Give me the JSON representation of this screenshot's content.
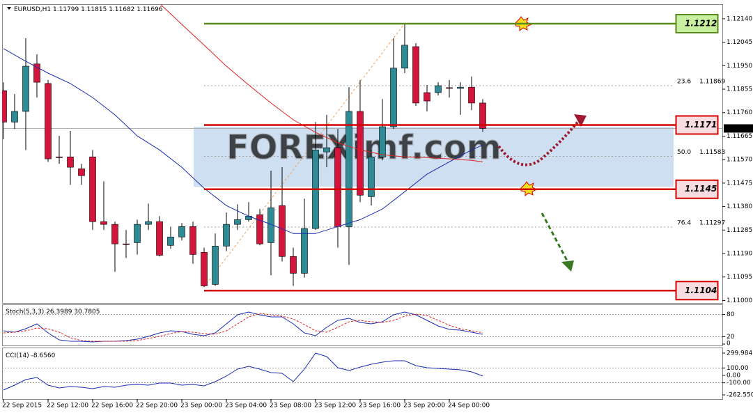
{
  "chart_data": [
    {
      "type": "candlestick",
      "title": "EURUSD,H1",
      "watermark": "FOREXimf.com",
      "categories": [
        "22 Sep 2015",
        null,
        null,
        null,
        "22 Sep 12:00",
        null,
        null,
        null,
        "22 Sep 16:00",
        null,
        null,
        null,
        "22 Sep 20:00",
        null,
        null,
        null,
        "23 Sep 00:00",
        null,
        null,
        null,
        "23 Sep 04:00",
        null,
        null,
        null,
        "23 Sep 08:00",
        null,
        null,
        null,
        "23 Sep 12:00",
        null,
        null,
        null,
        "23 Sep 16:00",
        null,
        null,
        null,
        "23 Sep 20:00",
        null,
        null,
        null,
        "24 Sep 00:00",
        null,
        null,
        null
      ],
      "open": [
        1.11849,
        1.11722,
        1.11765,
        1.11957,
        1.11878,
        1.11581,
        1.11581,
        1.11533,
        1.11581,
        1.11319,
        1.11308,
        1.11229,
        1.11234,
        1.11308,
        1.11319,
        1.11223,
        1.11257,
        1.11299,
        1.11195,
        1.11065,
        1.1122,
        1.11308,
        1.11327,
        1.11347,
        1.11234,
        1.11384,
        1.11178,
        1.1111,
        1.11291,
        1.11601,
        1.11618,
        1.11299,
        1.11765,
        1.1142,
        1.11581,
        1.11703,
        1.1194,
        1.12027,
        1.11841,
        1.11841,
        1.11861,
        1.11858,
        1.11863,
        1.11799
      ],
      "high": [
        1.11883,
        1.11835,
        1.12061,
        1.11996,
        1.11892,
        1.11666,
        1.11686,
        1.11553,
        1.11609,
        1.11482,
        1.11319,
        1.11285,
        1.11327,
        1.11392,
        1.11341,
        1.11299,
        1.11313,
        1.11319,
        1.11214,
        1.11271,
        1.11356,
        1.11389,
        1.11398,
        1.1137,
        1.11525,
        1.11539,
        1.11214,
        1.11412,
        1.11722,
        1.11751,
        1.11694,
        1.11863,
        1.11892,
        1.11609,
        1.11815,
        1.12061,
        1.12117,
        1.12041,
        1.11872,
        1.11883,
        1.11892,
        1.11883,
        1.11906,
        1.11815
      ],
      "low": [
        1.11652,
        1.11694,
        1.11609,
        1.11821,
        1.11561,
        1.11553,
        1.11468,
        1.11468,
        1.11285,
        1.11285,
        1.11116,
        1.11172,
        1.11186,
        1.11285,
        1.11178,
        1.11209,
        1.11243,
        1.11149,
        1.11054,
        1.11059,
        1.112,
        1.11285,
        1.11319,
        1.11223,
        1.11102,
        1.11158,
        1.11059,
        1.11093,
        1.11285,
        1.11539,
        1.11214,
        1.11144,
        1.11398,
        1.11384,
        1.11567,
        1.11694,
        1.1192,
        1.11787,
        1.11765,
        1.1183,
        1.11821,
        1.11751,
        1.1177,
        1.11682
      ],
      "close": [
        1.11722,
        1.11765,
        1.11948,
        1.11883,
        1.11573,
        1.11578,
        1.11539,
        1.11505,
        1.11319,
        1.11308,
        1.11229,
        1.11226,
        1.11308,
        1.11319,
        1.11183,
        1.11257,
        1.11299,
        1.11186,
        1.11059,
        1.1122,
        1.11308,
        1.11327,
        1.11341,
        1.11229,
        1.11375,
        1.11178,
        1.1111,
        1.11291,
        1.11609,
        1.11618,
        1.11299,
        1.11765,
        1.11426,
        1.11581,
        1.11703,
        1.1194,
        1.12033,
        1.11799,
        1.11807,
        1.11869,
        1.11858,
        1.11863,
        1.11799,
        1.11696
      ],
      "up_color": "#2e8b96",
      "down_color": "#d4143c",
      "overlays": [
        {
          "color": "#1a2cb0",
          "x": [
            0,
            2,
            4,
            6,
            8,
            10,
            12,
            14,
            16,
            18,
            20,
            22,
            24,
            26,
            28,
            30,
            32,
            34,
            36,
            38,
            40,
            42,
            43
          ],
          "values": [
            1.12019,
            1.11968,
            1.1192,
            1.11878,
            1.11821,
            1.11751,
            1.11666,
            1.11609,
            1.11539,
            1.11454,
            1.11384,
            1.11341,
            1.11308,
            1.11271,
            1.11271,
            1.11299,
            1.11327,
            1.1137,
            1.1144,
            1.11511,
            1.11561,
            1.11609,
            1.11629
          ]
        },
        {
          "color": "#e02020",
          "x": [
            14,
            16,
            18,
            20,
            22,
            24,
            26,
            28,
            30,
            32,
            34,
            36,
            38,
            40,
            42,
            43
          ],
          "values": [
            1.12202,
            1.12117,
            1.12033,
            1.11948,
            1.11872,
            1.11799,
            1.11731,
            1.1168,
            1.11638,
            1.11609,
            1.1159,
            1.11581,
            1.11578,
            1.11573,
            1.11567,
            1.11561
          ]
        }
      ],
      "levels": [
        {
          "value": 1.1212,
          "color": "#5a8a1e",
          "fill": "#c8f0a0"
        },
        {
          "value": 1.1171,
          "color": "#d40000",
          "fill": "#f8dde0"
        },
        {
          "value": 1.1145,
          "color": "#d40000",
          "fill": "#f8dde0"
        },
        {
          "value": 1.1104,
          "color": "#d40000",
          "fill": "#f8dde0"
        }
      ],
      "fibonacci": [
        {
          "level": "23.6",
          "price": 1.11869
        },
        {
          "level": "50.0",
          "price": 1.11583
        },
        {
          "level": "76.4",
          "price": 1.11297
        }
      ],
      "ylim": [
        1.1099,
        1.12196
      ],
      "yticks": [
        {
          "value": 1.1214,
          "label": "1.12140"
        },
        1.12045,
        {
          "value": 1.1195,
          "label": "1.11950"
        },
        1.11855,
        {
          "value": 1.1176,
          "label": "1.11760"
        },
        1.11665,
        {
          "value": 1.1157,
          "label": "1.11570"
        },
        1.11475,
        {
          "value": 1.1138,
          "label": "1.11380"
        },
        1.11285,
        {
          "value": 1.1119,
          "label": "1.11190"
        },
        1.11095,
        {
          "value": 1.11,
          "label": "1.11000"
        }
      ]
    },
    {
      "type": "line",
      "title": "Stoch(5,3,3)",
      "series": [
        {
          "color": "#1a2cb0",
          "style": "solid",
          "values": [
            35.8,
            32.1,
            41.5,
            54.7,
            30.2,
            11.3,
            7.5,
            7.5,
            5.7,
            7.5,
            7.5,
            9.4,
            13.2,
            20.8,
            30.2,
            35.8,
            34.0,
            26.4,
            22.6,
            30.2,
            54.7,
            79.2,
            86.8,
            79.2,
            73.6,
            73.6,
            54.7,
            30.2,
            22.6,
            45.3,
            64.2,
            69.8,
            58.5,
            54.7,
            60.4,
            79.2,
            86.8,
            79.2,
            64.2,
            49.1,
            39.6,
            37.7,
            32.1,
            26.3989
          ]
        },
        {
          "color": "#e02020",
          "style": "dashed",
          "values": [
            30.2,
            32.1,
            35.8,
            43.4,
            41.5,
            32.1,
            17.0,
            9.4,
            7.5,
            7.5,
            7.5,
            7.5,
            9.4,
            15.1,
            20.8,
            28.3,
            34.0,
            32.1,
            28.3,
            26.4,
            35.8,
            54.7,
            73.6,
            83.0,
            79.2,
            75.5,
            67.9,
            52.8,
            35.8,
            32.1,
            45.3,
            60.4,
            64.2,
            60.4,
            58.5,
            64.2,
            75.5,
            81.1,
            77.4,
            64.2,
            50.9,
            41.5,
            35.8,
            30.7805
          ]
        }
      ],
      "levels": [
        80,
        20
      ],
      "ylim": [
        0,
        100
      ],
      "yticks": [
        80,
        20,
        0
      ]
    },
    {
      "type": "line",
      "title": "CCI(14)",
      "series": [
        {
          "color": "#1a2cb0",
          "style": "solid",
          "values": [
            -197,
            -131,
            -56,
            -28,
            -131,
            -169,
            -150,
            -159,
            -178,
            -150,
            -159,
            -131,
            -122,
            -131,
            -103,
            -103,
            -131,
            -122,
            -141,
            -84,
            -9,
            84,
            122,
            84,
            37,
            28,
            -84,
            84,
            299.9847,
            253,
            103,
            66,
            112,
            150,
            178,
            197,
            197,
            131,
            103,
            94,
            84,
            75,
            47,
            -8.656
          ],
          "value_labels": [
            null,
            null,
            null,
            null,
            null,
            null,
            null,
            null,
            null,
            null,
            null,
            null,
            null,
            null,
            null,
            null,
            null,
            null,
            null,
            null,
            null,
            null,
            null,
            null,
            null,
            null,
            null,
            null,
            null,
            null,
            null,
            null,
            null,
            null,
            null,
            null,
            null,
            null,
            null,
            null,
            null,
            null,
            null,
            "-8.6560"
          ]
        }
      ],
      "levels": [
        100,
        -100
      ],
      "ylim": [
        -262.5501,
        299.9847
      ],
      "yticks": [
        299.9847,
        {
          "value": 100,
          "label": "100.00"
        },
        {
          "value": 0,
          "label": "0.00"
        },
        {
          "value": -100,
          "label": "-100.00"
        },
        -262.5501
      ]
    }
  ]
}
